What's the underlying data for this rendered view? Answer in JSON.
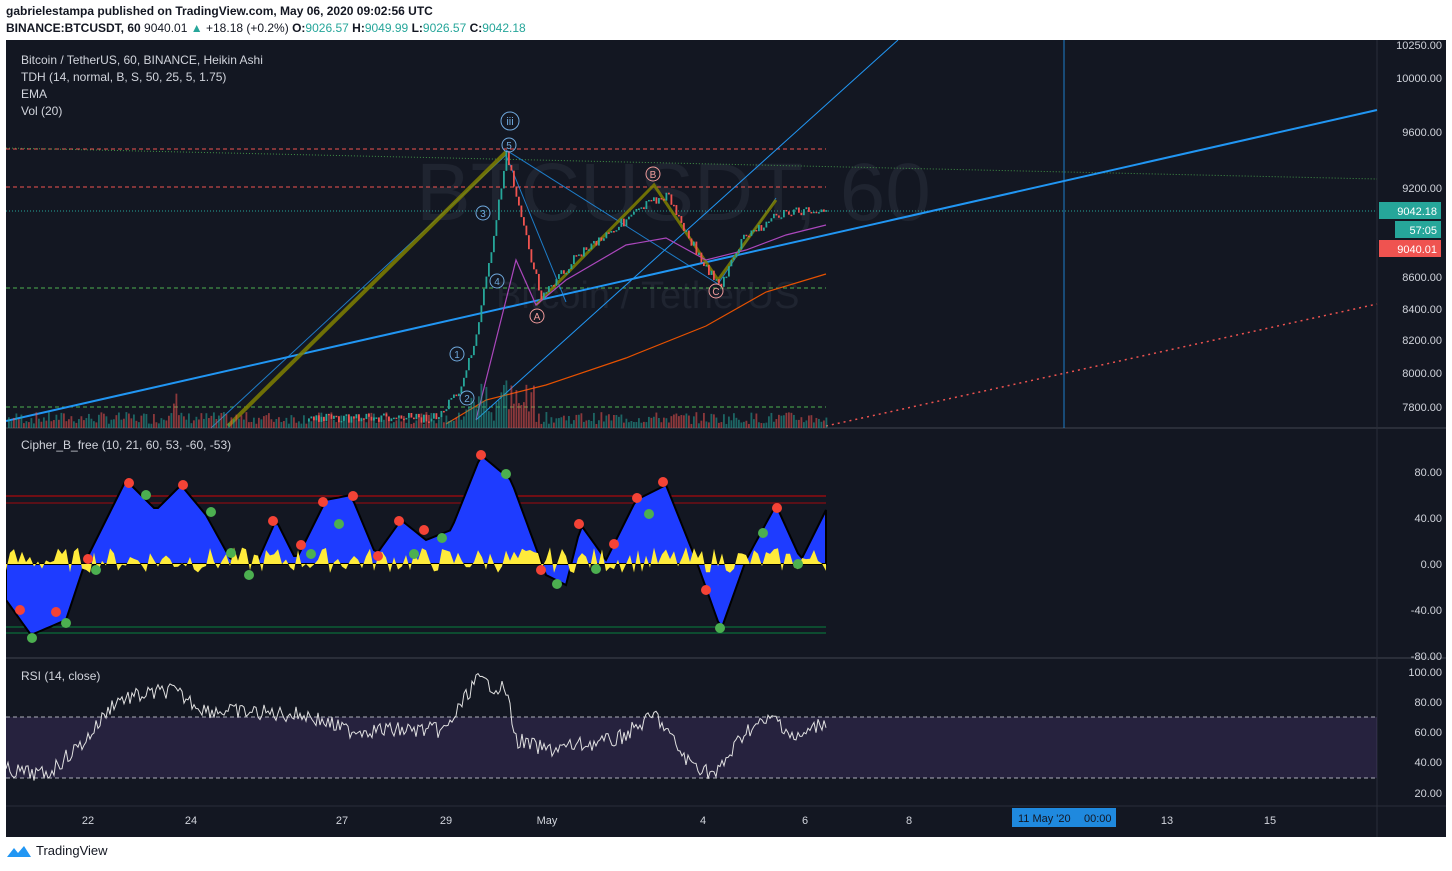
{
  "header": {
    "publisher_line": "gabrielestampa published on TradingView.com, May 06, 2020 09:02:56 UTC",
    "symbol_line_prefix": "BINANCE:BTCUSDT, 60",
    "last": "9040.01",
    "change": "+18.18 (+0.2%)",
    "o_label": "O:",
    "o": "9026.57",
    "h_label": "H:",
    "h": "9049.99",
    "l_label": "L:",
    "l": "9026.57",
    "c_label": "C:",
    "c": "9042.18"
  },
  "main_legend": {
    "title": "Bitcoin / TetherUS, 60, BINANCE, Heikin Ashi",
    "tdh": "TDH (14, normal, B, S, 50, 25, 5, 1.75)",
    "ema": "EMA",
    "vol": "Vol (20)"
  },
  "watermark": {
    "symbol": "BTCUSDT, 60",
    "name": "Bitcoin / TetherUS"
  },
  "price_axis": {
    "ticks": [
      "10250.00",
      "10000.00",
      "9600.00",
      "9200.00",
      "8600.00",
      "8400.00",
      "8200.00",
      "8000.00",
      "7800.00"
    ],
    "badge_price": "9042.18",
    "badge_countdown": "57:05",
    "badge_last": "9040.01"
  },
  "wave_labels": [
    "iii",
    "5",
    "3",
    "4",
    "1",
    "2",
    "A",
    "B",
    "C"
  ],
  "cipher": {
    "title": "Cipher_B_free (10, 21, 60, 53, -60, -53)",
    "ticks": [
      "80.00",
      "40.00",
      "0.00",
      "-40.00",
      "-80.00"
    ]
  },
  "rsi": {
    "title": "RSI (14, close)",
    "ticks": [
      "100.00",
      "80.00",
      "60.00",
      "40.00",
      "20.00"
    ]
  },
  "time_axis": {
    "ticks": [
      "22",
      "24",
      "27",
      "29",
      "May",
      "4",
      "6",
      "8",
      "13",
      "15"
    ],
    "highlight": "11 May '20",
    "highlight_time": "00:00"
  },
  "footer": {
    "brand": "TradingView"
  },
  "colors": {
    "background": "#131722",
    "up": "#26a69a",
    "down": "#ef5350",
    "trend": "#2196f3",
    "cipher_wave": "#1e3cff",
    "cipher_money": "#ffeb3b",
    "rsi_band": "#7e57c2"
  }
}
